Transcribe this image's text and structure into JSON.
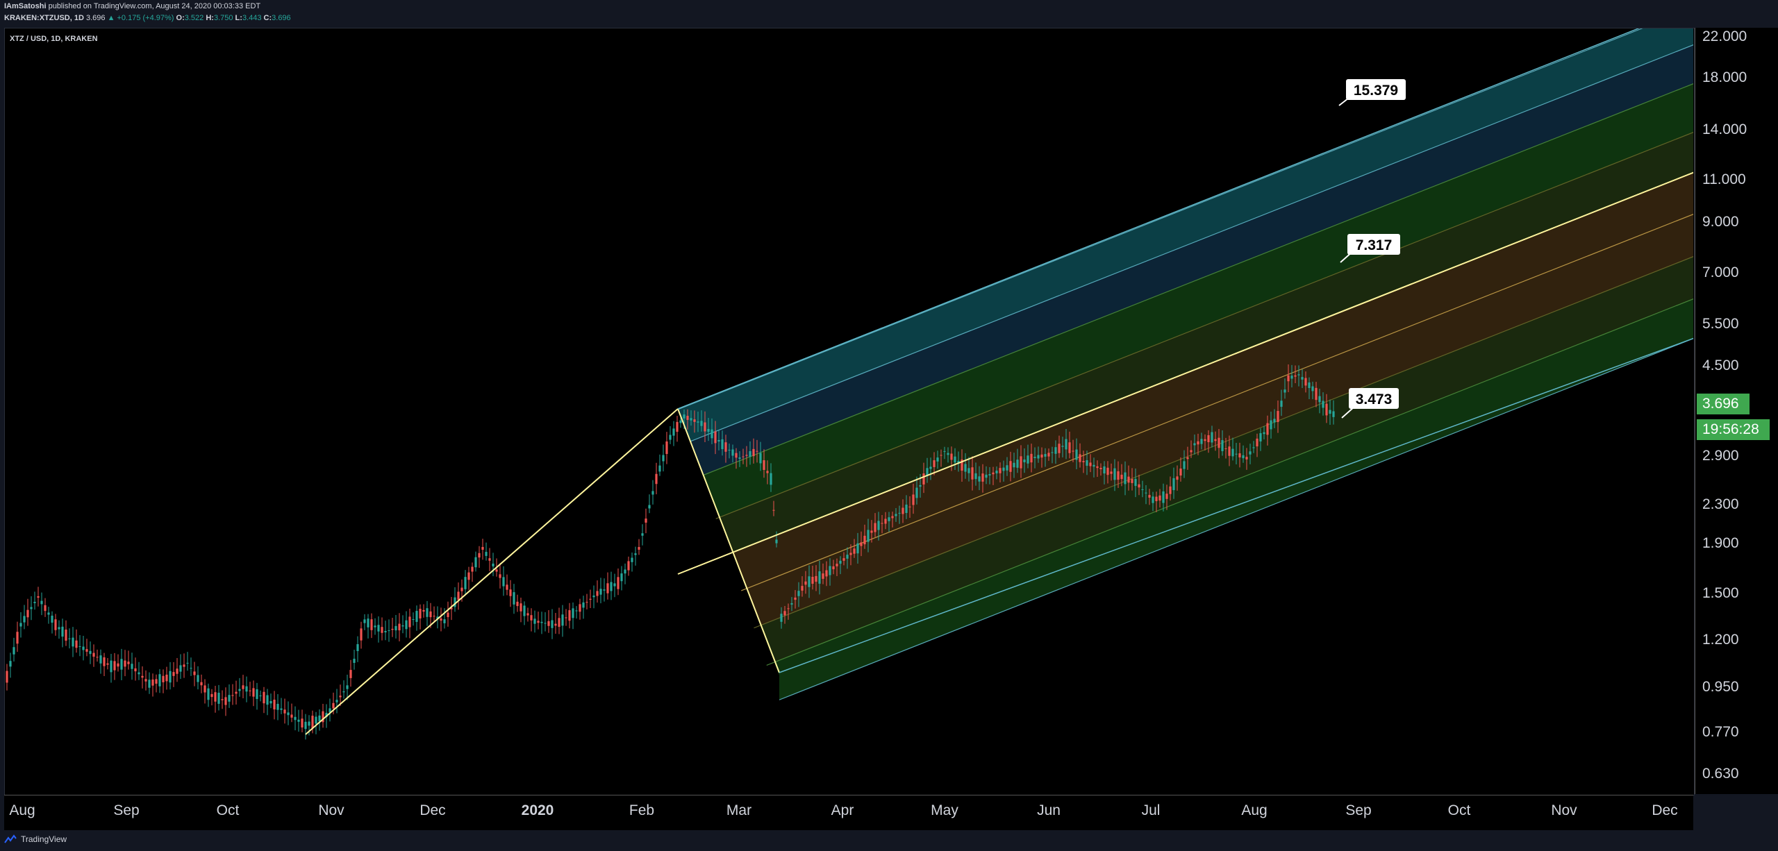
{
  "header": {
    "author": "IAmSatoshi",
    "published": "published on TradingView.com, August 24, 2020 00:03:33 EDT",
    "symbol": "KRAKEN:XTZUSD, 1D",
    "last": "3.696",
    "change": "▲ +0.175 (+4.97%)",
    "open_label": "O:",
    "open": "3.522",
    "high_label": "H:",
    "high": "3.750",
    "low_label": "L:",
    "low": "3.443",
    "close_label": "C:",
    "close": "3.696"
  },
  "chart": {
    "symbol_label": "XTZ / USD, 1D, KRAKEN",
    "price_ticks": [
      "22.000",
      "18.000",
      "14.000",
      "11.000",
      "9.000",
      "7.000",
      "5.500",
      "4.500",
      "2.900",
      "2.300",
      "1.900",
      "1.500",
      "1.200",
      "0.950",
      "0.770",
      "0.630"
    ],
    "time_ticks": [
      "Aug",
      "Sep",
      "Oct",
      "Nov",
      "Dec",
      "2020",
      "Feb",
      "Mar",
      "Apr",
      "May",
      "Jun",
      "Jul",
      "Aug",
      "Sep",
      "Oct",
      "Nov",
      "Dec"
    ],
    "current_price": "3.696",
    "countdown": "19:56:28",
    "channel_labels": [
      "15.379",
      "7.317",
      "3.473"
    ],
    "colors": {
      "up": "#26a69a",
      "down": "#ef5350",
      "pitchfork": "#fff59d",
      "price_tag": "#3fa84f"
    }
  },
  "footer": {
    "brand": "TradingView"
  }
}
